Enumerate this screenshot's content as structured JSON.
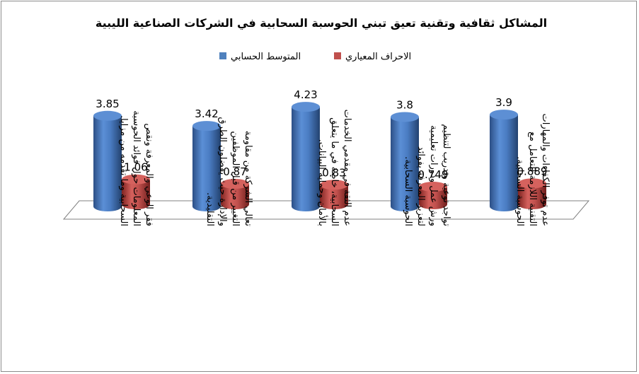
{
  "chart_data": {
    "type": "bar",
    "title": "المشاكل ثقافية وتقنية تعيق تبني الحوسبة السحابية في الشركات الصناعية الليبية",
    "categories": [
      "فقر الوعي والمعرفة ونقص المعلومات حول فوائد الحوسبة السحابية وما تقدمه من مزايا.",
      "تعالي الشركة من مقاومة التغيير من قبل الموظفين والإدارة حيث يفضلون الطرق التقليدية.",
      "عدم الثقة في مقدمي الخدمات السحابية، خاصة في ما يتعلق بالأمان وحماية البيانات.",
      "تواجد توعية وتدريب لتنظيم ورش عمل ودورات تعليمية لتعزيز المعرفة بفوائد الحوسبة السحابية.",
      "عدم توفر الكفاءات والمهارات التقنية اللازمة للتعامل مع الحوسبة السحابية."
    ],
    "series": [
      {
        "name": "المتوسط الحسابي",
        "values": [
          3.85,
          3.42,
          4.23,
          3.8,
          3.9
        ],
        "labels": [
          "3.85",
          "3.42",
          "4.23",
          "3.8",
          "3.9"
        ],
        "color": "#4f81bd"
      },
      {
        "name": "الاحراف المعياري",
        "values": [
          1.06,
          0.87,
          0.83,
          0.749,
          0.889
        ],
        "labels": [
          "1.06",
          "0.87",
          "0.83",
          "0.749",
          "0.889"
        ],
        "color": "#c0504d"
      }
    ],
    "legend_position": "top",
    "grid": false,
    "style": "3d-cylinder"
  }
}
